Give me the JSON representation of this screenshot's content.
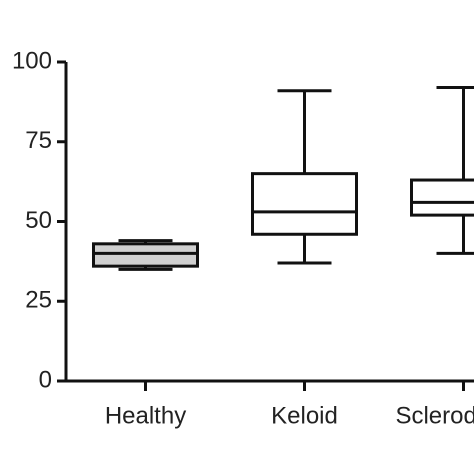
{
  "chart_data": {
    "type": "box",
    "categories": [
      "Healthy",
      "Keloid",
      "Scleroderma"
    ],
    "boxes": [
      {
        "min": 35,
        "q1": 36,
        "median": 40,
        "q3": 43,
        "max": 44
      },
      {
        "min": 37,
        "q1": 46,
        "median": 53,
        "q3": 65,
        "max": 91
      },
      {
        "min": 40,
        "q1": 52,
        "median": 56,
        "q3": 63,
        "max": 92
      }
    ],
    "colors": [
      "#d0d0d0",
      "#ffffff",
      "#ffffff"
    ],
    "ylim": [
      0,
      100
    ],
    "yticks": [
      0,
      25,
      50,
      75,
      100
    ]
  }
}
